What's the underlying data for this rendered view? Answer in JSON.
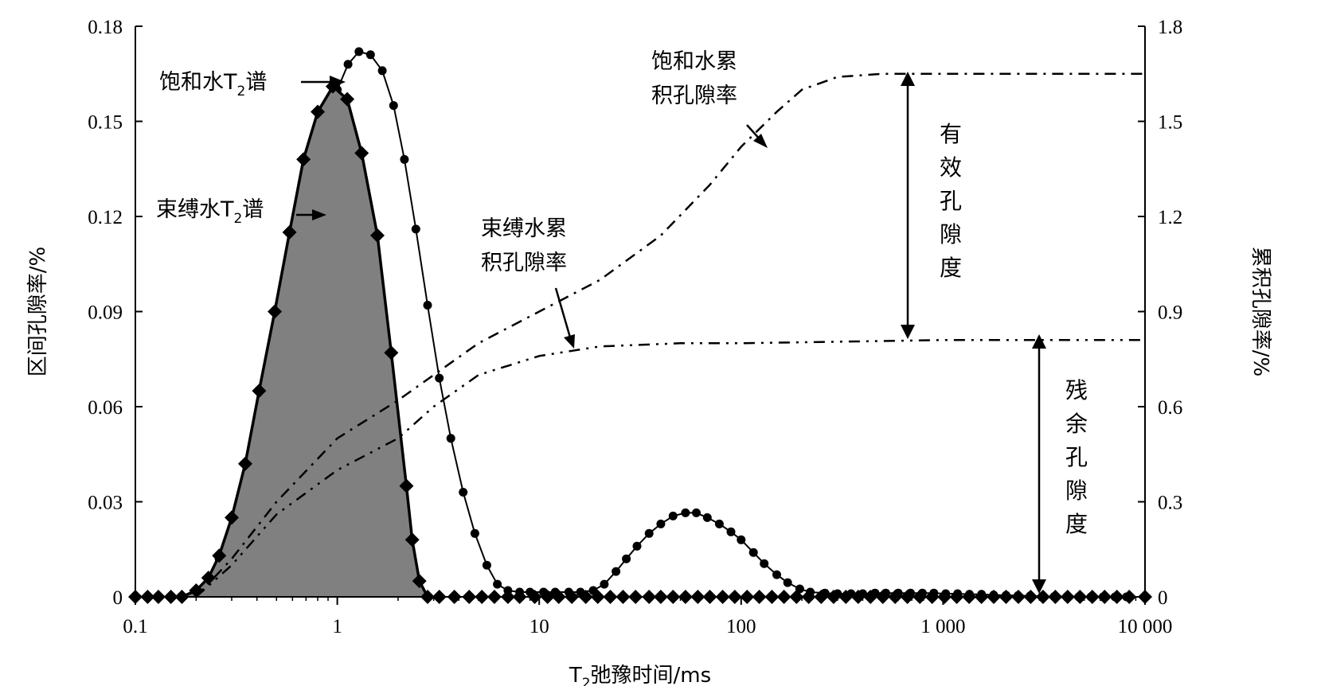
{
  "chart_data": {
    "type": "line",
    "x_axis": {
      "label_prefix": "T",
      "label_sub": "2",
      "label_suffix": "弛豫时间/ms",
      "scale": "log",
      "range": [
        0.1,
        10000
      ],
      "ticks": [
        {
          "value": 0.1,
          "label": "0.1"
        },
        {
          "value": 1,
          "label": "1"
        },
        {
          "value": 10,
          "label": "10"
        },
        {
          "value": 100,
          "label": "100"
        },
        {
          "value": 1000,
          "label": "1 000"
        },
        {
          "value": 10000,
          "label": "10 000"
        }
      ]
    },
    "y_left": {
      "label": "区间孔隙率/%",
      "range": [
        0,
        0.18
      ],
      "ticks": [
        {
          "value": 0,
          "label": "0"
        },
        {
          "value": 0.03,
          "label": "0.03"
        },
        {
          "value": 0.06,
          "label": "0.06"
        },
        {
          "value": 0.09,
          "label": "0.09"
        },
        {
          "value": 0.12,
          "label": "0.12"
        },
        {
          "value": 0.15,
          "label": "0.15"
        },
        {
          "value": 0.18,
          "label": "0.18"
        }
      ]
    },
    "y_right": {
      "label": "累积孔隙率/%",
      "range": [
        0,
        1.8
      ],
      "ticks": [
        {
          "value": 0,
          "label": "0"
        },
        {
          "value": 0.3,
          "label": "0.3"
        },
        {
          "value": 0.6,
          "label": "0.6"
        },
        {
          "value": 0.9,
          "label": "0.9"
        },
        {
          "value": 1.2,
          "label": "1.2"
        },
        {
          "value": 1.5,
          "label": "1.5"
        },
        {
          "value": 1.8,
          "label": "1.8"
        }
      ]
    },
    "series": [
      {
        "name": "饱和水T2谱",
        "axis": "left",
        "marker": "circle",
        "line": "solid",
        "points": [
          [
            0.1,
            0
          ],
          [
            0.115,
            0
          ],
          [
            0.13,
            0
          ],
          [
            0.15,
            0
          ],
          [
            0.17,
            0
          ],
          [
            0.2,
            0.002
          ],
          [
            0.23,
            0.006
          ],
          [
            0.26,
            0.012
          ],
          [
            0.3,
            0.022
          ],
          [
            0.34,
            0.033
          ],
          [
            0.39,
            0.046
          ],
          [
            0.45,
            0.062
          ],
          [
            0.51,
            0.079
          ],
          [
            0.59,
            0.097
          ],
          [
            0.68,
            0.115
          ],
          [
            0.78,
            0.132
          ],
          [
            0.89,
            0.147
          ],
          [
            1.0,
            0.16
          ],
          [
            1.13,
            0.168
          ],
          [
            1.28,
            0.172
          ],
          [
            1.46,
            0.171
          ],
          [
            1.67,
            0.166
          ],
          [
            1.9,
            0.155
          ],
          [
            2.15,
            0.138
          ],
          [
            2.45,
            0.116
          ],
          [
            2.8,
            0.092
          ],
          [
            3.2,
            0.069
          ],
          [
            3.65,
            0.05
          ],
          [
            4.2,
            0.033
          ],
          [
            4.8,
            0.02
          ],
          [
            5.5,
            0.01
          ],
          [
            6.2,
            0.004
          ],
          [
            7.0,
            0.002
          ],
          [
            8,
            0.0015
          ],
          [
            9,
            0.0015
          ],
          [
            10.5,
            0.0015
          ],
          [
            12,
            0.0015
          ],
          [
            14,
            0.0015
          ],
          [
            16,
            0.0015
          ],
          [
            18.5,
            0.002
          ],
          [
            21,
            0.004
          ],
          [
            24,
            0.008
          ],
          [
            27,
            0.012
          ],
          [
            30.5,
            0.016
          ],
          [
            35,
            0.02
          ],
          [
            40,
            0.023
          ],
          [
            46,
            0.0255
          ],
          [
            53,
            0.0265
          ],
          [
            60,
            0.0265
          ],
          [
            68,
            0.025
          ],
          [
            78,
            0.023
          ],
          [
            89,
            0.0205
          ],
          [
            100,
            0.018
          ],
          [
            115,
            0.014
          ],
          [
            130,
            0.0105
          ],
          [
            150,
            0.007
          ],
          [
            170,
            0.0045
          ],
          [
            195,
            0.0025
          ],
          [
            220,
            0.0015
          ],
          [
            260,
            0.0012
          ],
          [
            300,
            0.001
          ],
          [
            350,
            0.001
          ],
          [
            400,
            0.001
          ],
          [
            460,
            0.0012
          ],
          [
            520,
            0.0012
          ],
          [
            600,
            0.0012
          ],
          [
            690,
            0.0012
          ],
          [
            790,
            0.0012
          ],
          [
            900,
            0.0012
          ],
          [
            1030,
            0.001
          ],
          [
            1180,
            0.001
          ],
          [
            1350,
            0.0008
          ],
          [
            1550,
            0.0008
          ],
          [
            1780,
            0.0006
          ],
          [
            2050,
            0.0005
          ],
          [
            2350,
            0.0004
          ],
          [
            2700,
            0.0003
          ],
          [
            3100,
            0.0002
          ],
          [
            3550,
            0.0001
          ],
          [
            4100,
            0.0001
          ],
          [
            4700,
            0
          ],
          [
            5400,
            0
          ],
          [
            6200,
            0
          ],
          [
            7100,
            0
          ],
          [
            8100,
            0
          ],
          [
            10000,
            0
          ]
        ]
      },
      {
        "name": "束缚水T2谱",
        "axis": "left",
        "marker": "diamond",
        "line": "solid-filled",
        "points": [
          [
            0.1,
            0
          ],
          [
            0.115,
            0
          ],
          [
            0.13,
            0
          ],
          [
            0.15,
            0
          ],
          [
            0.17,
            0
          ],
          [
            0.2,
            0.002
          ],
          [
            0.23,
            0.006
          ],
          [
            0.26,
            0.013
          ],
          [
            0.3,
            0.025
          ],
          [
            0.35,
            0.042
          ],
          [
            0.41,
            0.065
          ],
          [
            0.49,
            0.09
          ],
          [
            0.58,
            0.115
          ],
          [
            0.68,
            0.138
          ],
          [
            0.8,
            0.153
          ],
          [
            0.95,
            0.161
          ],
          [
            1.12,
            0.157
          ],
          [
            1.32,
            0.14
          ],
          [
            1.58,
            0.114
          ],
          [
            1.85,
            0.077
          ],
          [
            2.2,
            0.035
          ],
          [
            2.35,
            0.018
          ],
          [
            2.55,
            0.005
          ],
          [
            2.8,
            0
          ],
          [
            3.2,
            0
          ],
          [
            3.8,
            0
          ],
          [
            4.5,
            0
          ],
          [
            5.2,
            0
          ],
          [
            6,
            0
          ],
          [
            7,
            0
          ],
          [
            8,
            0
          ],
          [
            9.5,
            0
          ],
          [
            11,
            0
          ],
          [
            12.5,
            0
          ],
          [
            14.5,
            0
          ],
          [
            17,
            0
          ],
          [
            19.5,
            0
          ],
          [
            22.5,
            0
          ],
          [
            26,
            0
          ],
          [
            30,
            0
          ],
          [
            35,
            0
          ],
          [
            40,
            0
          ],
          [
            46,
            0
          ],
          [
            53,
            0
          ],
          [
            61,
            0
          ],
          [
            70,
            0
          ],
          [
            81,
            0
          ],
          [
            93,
            0
          ],
          [
            107,
            0
          ],
          [
            123,
            0
          ],
          [
            142,
            0
          ],
          [
            163,
            0
          ],
          [
            188,
            0
          ],
          [
            216,
            0
          ],
          [
            249,
            0
          ],
          [
            287,
            0
          ],
          [
            330,
            0
          ],
          [
            380,
            0
          ],
          [
            437,
            0
          ],
          [
            503,
            0
          ],
          [
            579,
            0
          ],
          [
            666,
            0
          ],
          [
            767,
            0
          ],
          [
            883,
            0
          ],
          [
            1016,
            0
          ],
          [
            1169,
            0
          ],
          [
            1346,
            0
          ],
          [
            1549,
            0
          ],
          [
            1782,
            0
          ],
          [
            2051,
            0
          ],
          [
            2360,
            0
          ],
          [
            2716,
            0
          ],
          [
            3125,
            0
          ],
          [
            3597,
            0
          ],
          [
            4139,
            0
          ],
          [
            4763,
            0
          ],
          [
            5481,
            0
          ],
          [
            6308,
            0
          ],
          [
            7259,
            0
          ],
          [
            8354,
            0
          ],
          [
            10000,
            0
          ]
        ]
      },
      {
        "name": "饱和水累积孔隙率",
        "axis": "right",
        "line": "dashed",
        "points": [
          [
            0.2,
            0
          ],
          [
            0.3,
            0.12
          ],
          [
            0.5,
            0.3
          ],
          [
            1,
            0.5
          ],
          [
            2,
            0.62
          ],
          [
            5,
            0.8
          ],
          [
            10,
            0.9
          ],
          [
            20,
            1.0
          ],
          [
            40,
            1.14
          ],
          [
            70,
            1.3
          ],
          [
            100,
            1.42
          ],
          [
            150,
            1.53
          ],
          [
            200,
            1.6
          ],
          [
            300,
            1.64
          ],
          [
            500,
            1.65
          ],
          [
            1000,
            1.65
          ],
          [
            3000,
            1.65
          ],
          [
            10000,
            1.65
          ]
        ]
      },
      {
        "name": "束缚水累积孔隙率",
        "axis": "right",
        "line": "dash-dot-dot",
        "points": [
          [
            0.2,
            0
          ],
          [
            0.3,
            0.1
          ],
          [
            0.5,
            0.26
          ],
          [
            1,
            0.4
          ],
          [
            2,
            0.5
          ],
          [
            3,
            0.6
          ],
          [
            5,
            0.7
          ],
          [
            10,
            0.76
          ],
          [
            20,
            0.79
          ],
          [
            50,
            0.8
          ],
          [
            100,
            0.8
          ],
          [
            1000,
            0.81
          ],
          [
            10000,
            0.81
          ]
        ]
      }
    ],
    "annotations": {
      "saturated_spectrum_prefix": "饱和水T",
      "saturated_spectrum_sub": "2",
      "saturated_spectrum_suffix": "谱",
      "bound_spectrum_prefix": "束缚水T",
      "bound_spectrum_sub": "2",
      "bound_spectrum_suffix": "谱",
      "saturated_cum_line1": "饱和水累",
      "saturated_cum_line2": "积孔隙率",
      "bound_cum_line1": "束缚水累",
      "bound_cum_line2": "积孔隙率",
      "effective_porosity": [
        "有",
        "效",
        "孔",
        "隙",
        "度"
      ],
      "residual_porosity": [
        "残",
        "余",
        "孔",
        "隙",
        "度"
      ]
    }
  }
}
